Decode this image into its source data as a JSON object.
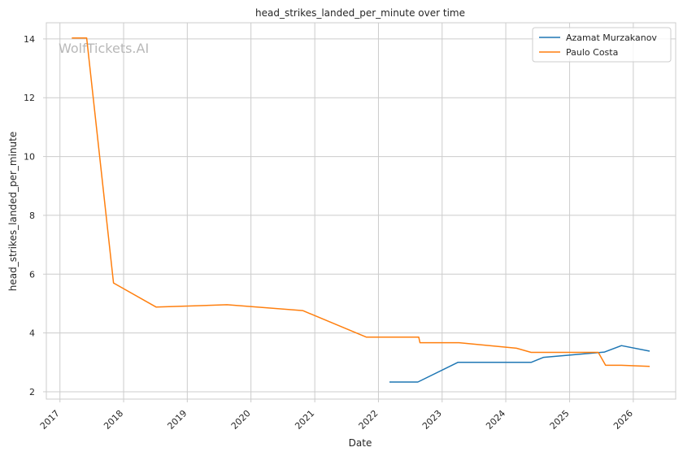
{
  "chart_data": {
    "type": "line",
    "title": "head_strikes_landed_per_minute over time",
    "xlabel": "Date",
    "ylabel": "head_strikes_landed_per_minute",
    "xlim": [
      "2016-10-15",
      "2026-09-01"
    ],
    "ylim": [
      1.75,
      14.55
    ],
    "x_ticks": [
      "2017",
      "2018",
      "2019",
      "2020",
      "2021",
      "2022",
      "2023",
      "2024",
      "2025",
      "2026"
    ],
    "y_ticks": [
      2,
      4,
      6,
      8,
      10,
      12,
      14
    ],
    "grid": true,
    "legend_position": "top-right",
    "watermark": "WolfTickets.AI",
    "series": [
      {
        "name": "Azamat Murzakanov",
        "color": "#1f77b4",
        "points": [
          {
            "x": "2022-03-05",
            "y": 2.33
          },
          {
            "x": "2022-08-15",
            "y": 2.33
          },
          {
            "x": "2023-04-01",
            "y": 3.0
          },
          {
            "x": "2024-05-25",
            "y": 3.0
          },
          {
            "x": "2024-08-05",
            "y": 3.17
          },
          {
            "x": "2025-07-20",
            "y": 3.35
          },
          {
            "x": "2025-10-25",
            "y": 3.57
          },
          {
            "x": "2026-04-05",
            "y": 3.38
          }
        ]
      },
      {
        "name": "Paulo Costa",
        "color": "#ff7f0e",
        "points": [
          {
            "x": "2017-03-10",
            "y": 14.03
          },
          {
            "x": "2017-06-03",
            "y": 14.03
          },
          {
            "x": "2017-11-04",
            "y": 5.7
          },
          {
            "x": "2018-07-07",
            "y": 4.88
          },
          {
            "x": "2019-08-17",
            "y": 4.96
          },
          {
            "x": "2020-10-24",
            "y": 4.76
          },
          {
            "x": "2021-10-23",
            "y": 3.86
          },
          {
            "x": "2022-08-20",
            "y": 3.86
          },
          {
            "x": "2022-08-27",
            "y": 3.67
          },
          {
            "x": "2023-04-08",
            "y": 3.67
          },
          {
            "x": "2024-03-02",
            "y": 3.48
          },
          {
            "x": "2024-05-25",
            "y": 3.34
          },
          {
            "x": "2025-06-14",
            "y": 3.34
          },
          {
            "x": "2025-07-26",
            "y": 2.9
          },
          {
            "x": "2025-10-25",
            "y": 2.9
          },
          {
            "x": "2026-04-05",
            "y": 2.86
          }
        ]
      }
    ]
  }
}
